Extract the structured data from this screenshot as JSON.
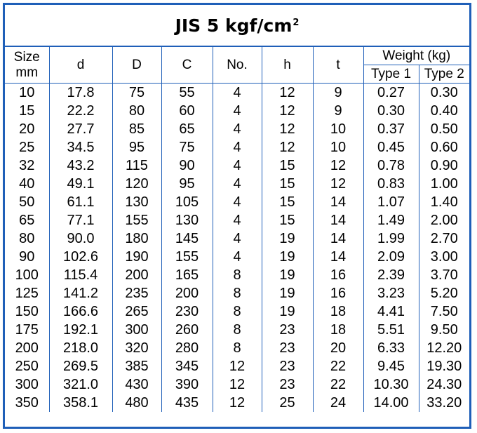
{
  "title": {
    "main": "JIS 5 kgf/cm",
    "sup": "2"
  },
  "headers": {
    "size_line1": "Size",
    "size_line2": "mm",
    "d": "d",
    "D": "D",
    "C": "C",
    "no": "No.",
    "h": "h",
    "t": "t",
    "weight": "Weight (kg)",
    "type1": "Type 1",
    "type2": "Type 2"
  },
  "rows": [
    [
      "10",
      "17.8",
      "75",
      "55",
      "4",
      "12",
      "9",
      "0.27",
      "0.30"
    ],
    [
      "15",
      "22.2",
      "80",
      "60",
      "4",
      "12",
      "9",
      "0.30",
      "0.40"
    ],
    [
      "20",
      "27.7",
      "85",
      "65",
      "4",
      "12",
      "10",
      "0.37",
      "0.50"
    ],
    [
      "25",
      "34.5",
      "95",
      "75",
      "4",
      "12",
      "10",
      "0.45",
      "0.60"
    ],
    [
      "32",
      "43.2",
      "115",
      "90",
      "4",
      "15",
      "12",
      "0.78",
      "0.90"
    ],
    [
      "40",
      "49.1",
      "120",
      "95",
      "4",
      "15",
      "12",
      "0.83",
      "1.00"
    ],
    [
      "50",
      "61.1",
      "130",
      "105",
      "4",
      "15",
      "14",
      "1.07",
      "1.40"
    ],
    [
      "65",
      "77.1",
      "155",
      "130",
      "4",
      "15",
      "14",
      "1.49",
      "2.00"
    ],
    [
      "80",
      "90.0",
      "180",
      "145",
      "4",
      "19",
      "14",
      "1.99",
      "2.70"
    ],
    [
      "90",
      "102.6",
      "190",
      "155",
      "4",
      "19",
      "14",
      "2.09",
      "3.00"
    ],
    [
      "100",
      "115.4",
      "200",
      "165",
      "8",
      "19",
      "16",
      "2.39",
      "3.70"
    ],
    [
      "125",
      "141.2",
      "235",
      "200",
      "8",
      "19",
      "16",
      "3.23",
      "5.20"
    ],
    [
      "150",
      "166.6",
      "265",
      "230",
      "8",
      "19",
      "18",
      "4.41",
      "7.50"
    ],
    [
      "175",
      "192.1",
      "300",
      "260",
      "8",
      "23",
      "18",
      "5.51",
      "9.50"
    ],
    [
      "200",
      "218.0",
      "320",
      "280",
      "8",
      "23",
      "20",
      "6.33",
      "12.20"
    ],
    [
      "250",
      "269.5",
      "385",
      "345",
      "12",
      "23",
      "22",
      "9.45",
      "19.30"
    ],
    [
      "300",
      "321.0",
      "430",
      "390",
      "12",
      "23",
      "22",
      "10.30",
      "24.30"
    ],
    [
      "350",
      "358.1",
      "480",
      "435",
      "12",
      "25",
      "24",
      "14.00",
      "33.20"
    ]
  ],
  "colors": {
    "border": "#1f5fb8",
    "text": "#000000",
    "background": "#ffffff"
  }
}
